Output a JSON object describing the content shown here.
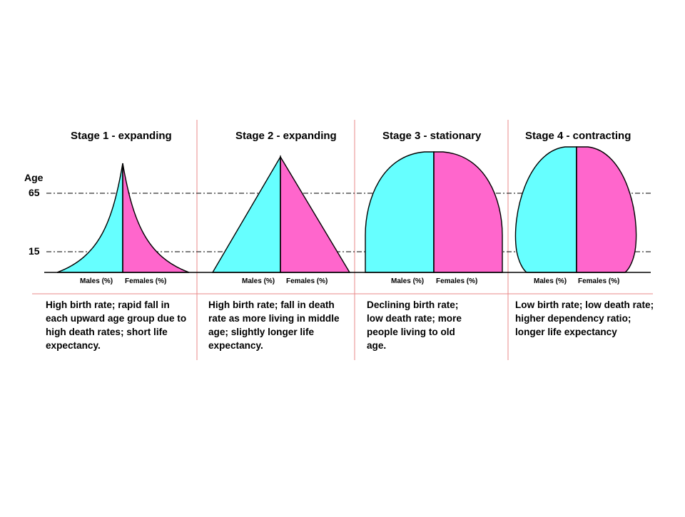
{
  "axis": {
    "title": "Age",
    "ticks": [
      "65",
      "15"
    ]
  },
  "colors": {
    "males": "#66FFFF",
    "females": "#FF66CC",
    "outline": "#000000",
    "divider": "#E88888",
    "guide": "#333333"
  },
  "stages": [
    {
      "title": "Stage 1 - expanding",
      "males_label": "Males (%)",
      "females_label": "Females (%)",
      "description": "High birth rate; rapid fall in each upward age group due to high death rates; short life expectancy."
    },
    {
      "title": "Stage 2 - expanding",
      "males_label": "Males (%)",
      "females_label": "Females (%)",
      "description": "High birth rate; fall in death rate as more living in middle age; slightly longer life expectancy."
    },
    {
      "title": "Stage 3 - stationary",
      "males_label": "Males (%)",
      "females_label": "Females (%)",
      "description": "Declining birth rate; low death rate; more people living to old age."
    },
    {
      "title": "Stage 4 - contracting",
      "males_label": "Males (%)",
      "females_label": "Females (%)",
      "description": "Low birth rate; low death rate; higher dependency ratio; longer life expectancy"
    }
  ]
}
